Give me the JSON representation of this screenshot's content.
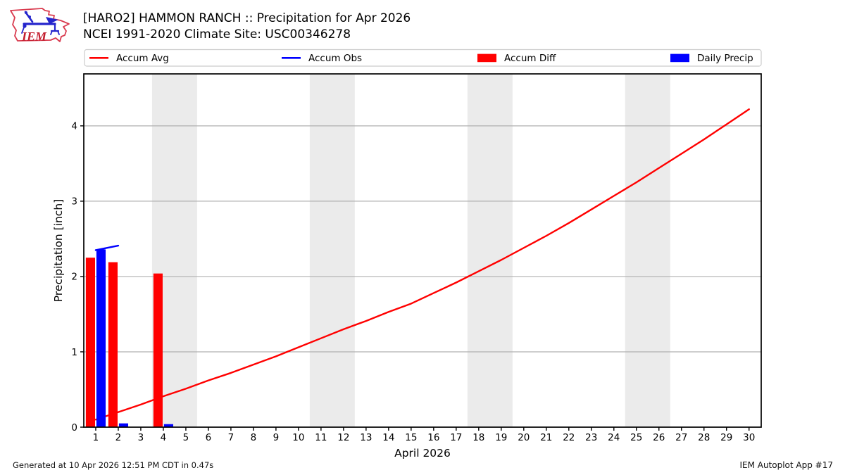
{
  "header": {
    "logo_text": "IEM",
    "title": "[HARO2] HAMMON RANCH :: Precipitation for Apr 2026",
    "subtitle": "NCEI 1991-2020 Climate Site: USC00346278"
  },
  "footer": {
    "generated": "Generated at 10 Apr 2026 12:51 PM CDT in 0.47s",
    "app": "IEM Autoplot App #17"
  },
  "colors": {
    "accent_red": "#ff0000",
    "accent_blue": "#0000ff",
    "weekend_band": "#ebebeb",
    "grid": "#b0b0b0",
    "plot_border": "#000000",
    "legend_border": "#cccccc",
    "logo_red": "#d93a4e",
    "logo_blue": "#2525cc"
  },
  "chart_data": {
    "type": "line+bar",
    "title": "[HARO2] HAMMON RANCH :: Precipitation for Apr 2026",
    "subtitle": "NCEI 1991-2020 Climate Site: USC00346278",
    "xlabel": "April 2026",
    "ylabel": "Precipitation [inch]",
    "xlim": [
      0.47,
      30.54
    ],
    "ylim": [
      0,
      4.69
    ],
    "x_ticks": [
      1,
      2,
      3,
      4,
      5,
      6,
      7,
      8,
      9,
      10,
      11,
      12,
      13,
      14,
      15,
      16,
      17,
      18,
      19,
      20,
      21,
      22,
      23,
      24,
      25,
      26,
      27,
      28,
      29,
      30
    ],
    "y_ticks": [
      0,
      1,
      2,
      3,
      4
    ],
    "grid": "horizontal",
    "weekend_bands_days": [
      [
        3.5,
        5.5
      ],
      [
        10.5,
        12.5
      ],
      [
        17.5,
        19.5
      ],
      [
        24.5,
        26.5
      ]
    ],
    "legend": {
      "position": "top",
      "items": [
        {
          "label": "Accum Avg",
          "swatch": "line",
          "color": "#ff0000"
        },
        {
          "label": "Accum Obs",
          "swatch": "line",
          "color": "#0000ff"
        },
        {
          "label": "Accum Diff",
          "swatch": "rect",
          "color": "#ff0000"
        },
        {
          "label": "Daily Precip",
          "swatch": "rect",
          "color": "#0000ff"
        }
      ]
    },
    "series": [
      {
        "name": "Accum Avg",
        "kind": "line",
        "layer": 1,
        "color": "#ff0000",
        "x": [
          1,
          2,
          3,
          4,
          5,
          6,
          7,
          8,
          9,
          10,
          11,
          12,
          13,
          14,
          15,
          16,
          17,
          18,
          19,
          20,
          21,
          22,
          23,
          24,
          25,
          26,
          27,
          28,
          29,
          30
        ],
        "y": [
          0.1,
          0.2,
          0.3,
          0.41,
          0.51,
          0.62,
          0.72,
          0.83,
          0.94,
          1.06,
          1.18,
          1.3,
          1.41,
          1.53,
          1.64,
          1.78,
          1.92,
          2.07,
          2.22,
          2.38,
          2.54,
          2.71,
          2.89,
          3.07,
          3.25,
          3.44,
          3.63,
          3.82,
          4.02,
          4.22
        ]
      },
      {
        "name": "Accum Diff",
        "kind": "bar",
        "layer": 2,
        "color": "#ff0000",
        "bar_offset": -0.235,
        "bar_width": 0.41,
        "x": [
          1,
          2,
          4
        ],
        "y": [
          2.25,
          2.19,
          2.04
        ]
      },
      {
        "name": "Daily Precip",
        "kind": "bar",
        "layer": 2,
        "color": "#0000ff",
        "bar_offset": 0.235,
        "bar_width": 0.41,
        "x": [
          1,
          2,
          4
        ],
        "y": [
          2.36,
          0.05,
          0.04
        ]
      },
      {
        "name": "Accum Obs",
        "kind": "line",
        "layer": 3,
        "color": "#0000ff",
        "x": [
          1,
          2
        ],
        "y": [
          2.35,
          2.41
        ]
      }
    ]
  }
}
